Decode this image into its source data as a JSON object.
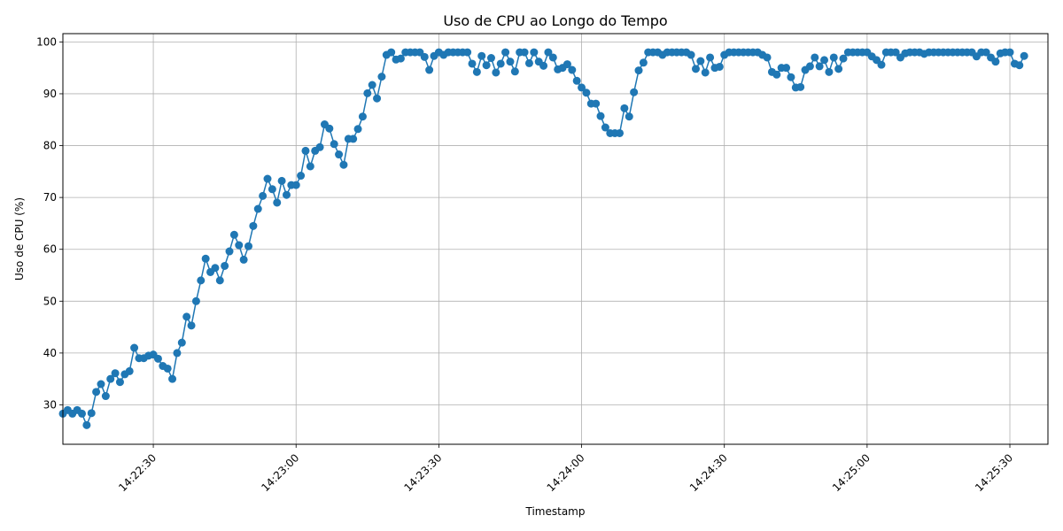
{
  "chart_data": {
    "type": "line",
    "title": "Uso de CPU ao Longo do Tempo",
    "xlabel": "Timestamp",
    "ylabel": "Uso de CPU (%)",
    "x_start": "14:22:11",
    "x_step_seconds": 1,
    "xlim": [
      "14:22:11",
      "14:25:38"
    ],
    "ylim": [
      22.4,
      101.6
    ],
    "x_ticks": [
      "14:22:30",
      "14:23:00",
      "14:23:30",
      "14:24:00",
      "14:24:30",
      "14:25:00",
      "14:25:30"
    ],
    "y_ticks": [
      30,
      40,
      50,
      60,
      70,
      80,
      90,
      100
    ],
    "grid": true,
    "series": [
      {
        "color": "#1f77b4",
        "values": [
          28.3,
          29.0,
          28.3,
          29.0,
          28.3,
          26.1,
          28.4,
          32.5,
          34.0,
          31.7,
          35.0,
          36.1,
          34.4,
          35.9,
          36.5,
          41.0,
          39.0,
          39.0,
          39.5,
          39.7,
          38.9,
          37.5,
          37.0,
          35.0,
          40.0,
          42.0,
          47.0,
          45.3,
          50.0,
          54.0,
          58.2,
          55.6,
          56.4,
          54.0,
          56.8,
          59.6,
          62.8,
          60.8,
          58.0,
          60.6,
          64.5,
          67.8,
          70.3,
          73.6,
          71.6,
          69.0,
          73.2,
          70.5,
          72.4,
          72.4,
          74.2,
          79.0,
          76.0,
          79.0,
          79.7,
          84.1,
          83.3,
          80.3,
          78.3,
          76.3,
          81.3,
          81.3,
          83.2,
          85.6,
          90.1,
          91.7,
          89.1,
          93.3,
          97.5,
          98.0,
          96.6,
          96.8,
          98.0,
          98.0,
          98.0,
          98.0,
          97.1,
          94.6,
          97.3,
          98.0,
          97.5,
          98.0,
          98.0,
          98.0,
          98.0,
          98.0,
          95.8,
          94.2,
          97.3,
          95.5,
          96.9,
          94.1,
          95.8,
          98.0,
          96.2,
          94.3,
          98.0,
          98.0,
          95.9,
          98.0,
          96.2,
          95.4,
          98.0,
          97.0,
          94.7,
          95.0,
          95.7,
          94.6,
          92.5,
          91.2,
          90.2,
          88.1,
          88.1,
          85.7,
          83.5,
          82.4,
          82.4,
          82.4,
          87.2,
          85.6,
          90.3,
          94.5,
          96.0,
          98.0,
          98.0,
          98.0,
          97.5,
          98.0,
          98.0,
          98.0,
          98.0,
          98.0,
          97.5,
          94.8,
          96.3,
          94.1,
          97.0,
          95.0,
          95.2,
          97.5,
          98.0,
          98.0,
          98.0,
          98.0,
          98.0,
          98.0,
          98.0,
          97.5,
          97.0,
          94.2,
          93.7,
          95.0,
          95.0,
          93.2,
          91.2,
          91.3,
          94.6,
          95.3,
          97.0,
          95.3,
          96.5,
          94.2,
          97.0,
          94.8,
          96.8,
          98.0,
          98.0,
          98.0,
          98.0,
          98.0,
          97.2,
          96.5,
          95.6,
          98.0,
          98.0,
          98.0,
          97.0,
          97.8,
          98.0,
          98.0,
          98.0,
          97.7,
          98.0,
          98.0,
          98.0,
          98.0,
          98.0,
          98.0,
          98.0,
          98.0,
          98.0,
          98.0,
          97.2,
          98.0,
          98.0,
          97.0,
          96.2,
          97.8,
          98.0,
          98.0,
          95.8,
          95.5,
          97.3
        ]
      }
    ]
  }
}
